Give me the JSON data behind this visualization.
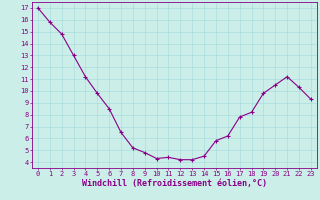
{
  "x": [
    0,
    1,
    2,
    3,
    4,
    5,
    6,
    7,
    8,
    9,
    10,
    11,
    12,
    13,
    14,
    15,
    16,
    17,
    18,
    19,
    20,
    21,
    22,
    23
  ],
  "y": [
    17.0,
    15.8,
    14.8,
    13.0,
    11.2,
    9.8,
    8.5,
    6.5,
    5.2,
    4.8,
    4.3,
    4.4,
    4.2,
    4.2,
    4.5,
    5.8,
    6.2,
    7.8,
    8.2,
    9.8,
    10.5,
    11.2,
    10.3,
    9.3
  ],
  "line_color": "#880088",
  "marker": "+",
  "marker_size": 3.5,
  "marker_lw": 0.8,
  "bg_color": "#cceee8",
  "grid_color": "#aadddd",
  "axis_color": "#880088",
  "xlabel": "Windchill (Refroidissement éolien,°C)",
  "xlim_min": -0.5,
  "xlim_max": 23.5,
  "ylim_min": 3.5,
  "ylim_max": 17.5,
  "yticks": [
    4,
    5,
    6,
    7,
    8,
    9,
    10,
    11,
    12,
    13,
    14,
    15,
    16,
    17
  ],
  "xticks": [
    0,
    1,
    2,
    3,
    4,
    5,
    6,
    7,
    8,
    9,
    10,
    11,
    12,
    13,
    14,
    15,
    16,
    17,
    18,
    19,
    20,
    21,
    22,
    23
  ],
  "tick_fontsize": 5.0,
  "xlabel_fontsize": 6.0,
  "line_width": 0.8
}
